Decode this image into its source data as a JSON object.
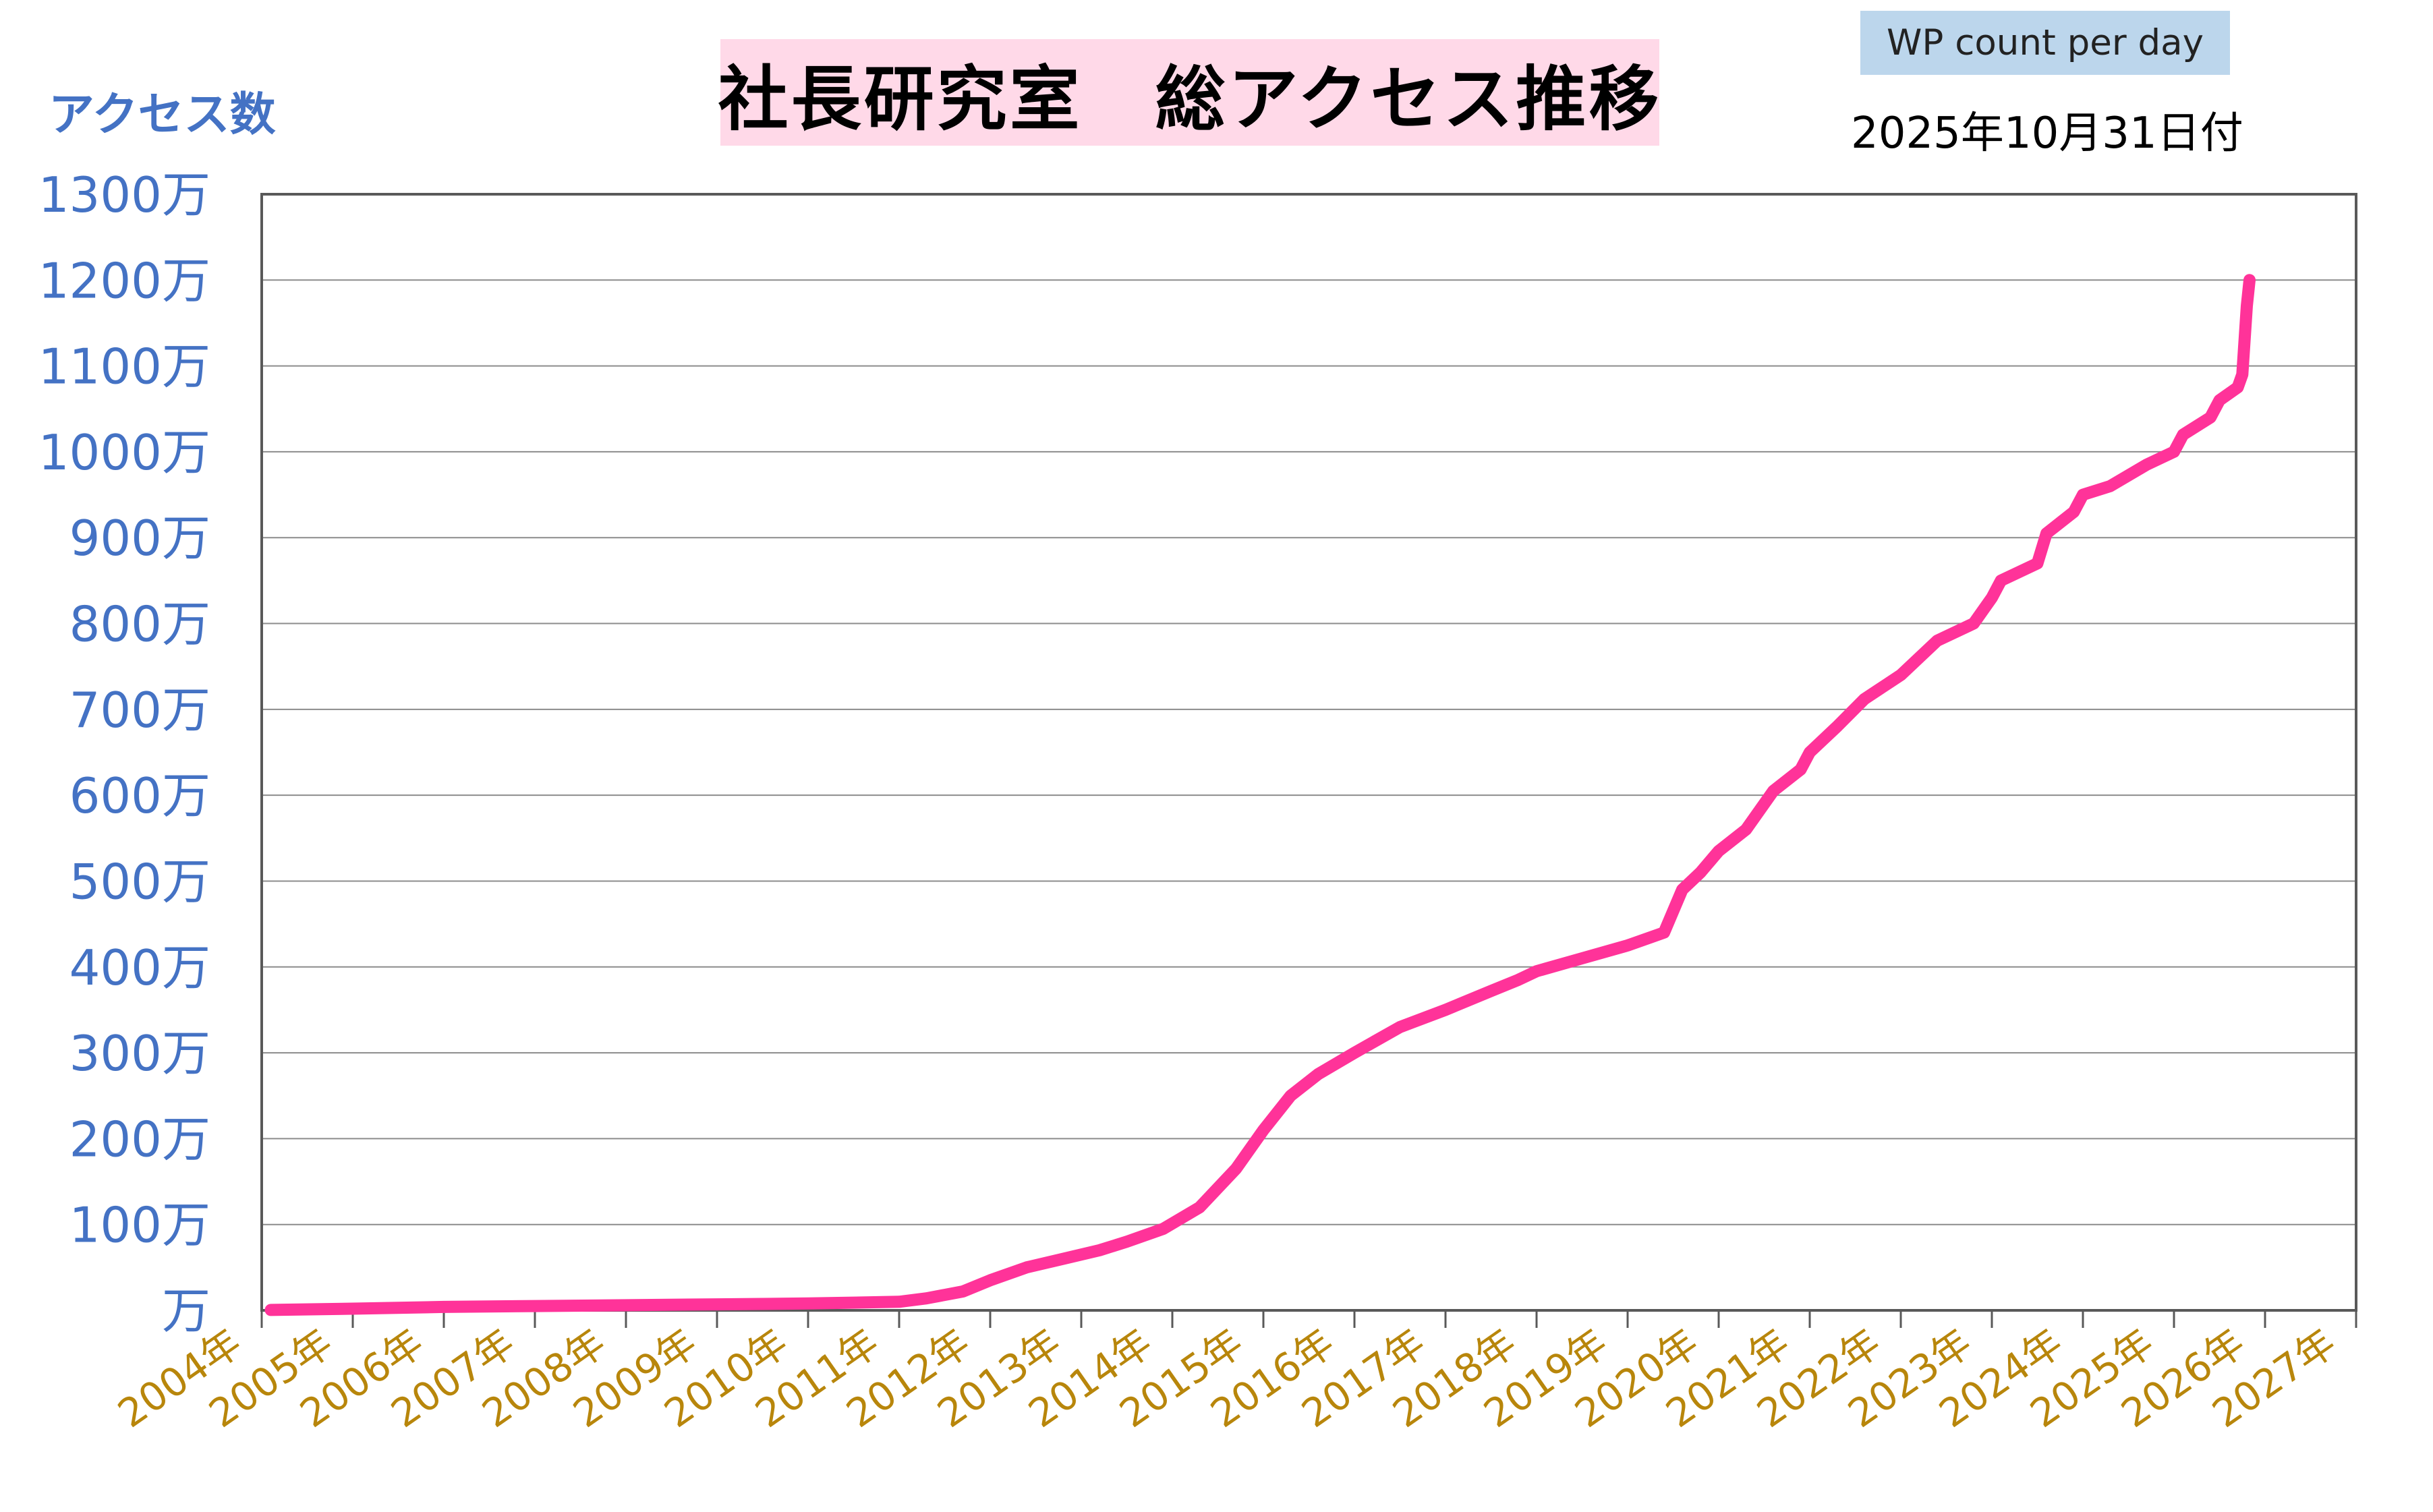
{
  "header": {
    "title": "社長研究室　総アクセス推移",
    "badge": "WP count per day",
    "date": "2025年10月31日付"
  },
  "colors": {
    "line": "#ff3399",
    "ytick": "#4472c4",
    "xtick": "#b8860b",
    "title_bg": "#ffd9e8",
    "badge_bg": "#bcd6ec"
  },
  "chart_data": {
    "type": "line",
    "ylabel": "アクセス数",
    "ylim": [
      0,
      1300
    ],
    "y_unit": "万",
    "y_ticks": [
      {
        "value": 0,
        "label": "万"
      },
      {
        "value": 100,
        "label": "100万"
      },
      {
        "value": 200,
        "label": "200万"
      },
      {
        "value": 300,
        "label": "300万"
      },
      {
        "value": 400,
        "label": "400万"
      },
      {
        "value": 500,
        "label": "500万"
      },
      {
        "value": 600,
        "label": "600万"
      },
      {
        "value": 700,
        "label": "700万"
      },
      {
        "value": 800,
        "label": "800万"
      },
      {
        "value": 900,
        "label": "900万"
      },
      {
        "value": 1000,
        "label": "1000万"
      },
      {
        "value": 1100,
        "label": "1100万"
      },
      {
        "value": 1200,
        "label": "1200万"
      },
      {
        "value": 1300,
        "label": "1300万"
      }
    ],
    "xlim": [
      2004,
      2027
    ],
    "x_ticks": [
      {
        "value": 2004,
        "label": "2004年"
      },
      {
        "value": 2005,
        "label": "2005年"
      },
      {
        "value": 2006,
        "label": "2006年"
      },
      {
        "value": 2007,
        "label": "2007年"
      },
      {
        "value": 2008,
        "label": "2008年"
      },
      {
        "value": 2009,
        "label": "2009年"
      },
      {
        "value": 2010,
        "label": "2010年"
      },
      {
        "value": 2011,
        "label": "2011年"
      },
      {
        "value": 2012,
        "label": "2012年"
      },
      {
        "value": 2013,
        "label": "2013年"
      },
      {
        "value": 2014,
        "label": "2014年"
      },
      {
        "value": 2015,
        "label": "2015年"
      },
      {
        "value": 2016,
        "label": "2016年"
      },
      {
        "value": 2017,
        "label": "2017年"
      },
      {
        "value": 2018,
        "label": "2018年"
      },
      {
        "value": 2019,
        "label": "2019年"
      },
      {
        "value": 2020,
        "label": "2020年"
      },
      {
        "value": 2021,
        "label": "2021年"
      },
      {
        "value": 2022,
        "label": "2022年"
      },
      {
        "value": 2023,
        "label": "2023年"
      },
      {
        "value": 2024,
        "label": "2024年"
      },
      {
        "value": 2025,
        "label": "2025年"
      },
      {
        "value": 2026,
        "label": "2026年"
      },
      {
        "value": 2027,
        "label": "2027年"
      }
    ],
    "grid": "horizontal",
    "series": [
      {
        "x": [
          2004.1,
          2005.0,
          2006.0,
          2007.0,
          2008.0,
          2009.0,
          2010.0,
          2011.0,
          2011.3,
          2011.7,
          2012.0,
          2012.4,
          2012.8,
          2013.2,
          2013.5,
          2013.9,
          2014.3,
          2014.7,
          2015.0,
          2015.3,
          2015.6,
          2016.0,
          2016.5,
          2017.0,
          2017.5,
          2017.8,
          2018.0,
          2018.5,
          2019.0,
          2019.4,
          2019.6,
          2019.8,
          2020.0,
          2020.3,
          2020.6,
          2020.9,
          2021.0,
          2021.3,
          2021.6,
          2022.0,
          2022.4,
          2022.8,
          2023.0,
          2023.1,
          2023.5,
          2023.6,
          2023.9,
          2024.0,
          2024.3,
          2024.7,
          2025.0,
          2025.1,
          2025.4,
          2025.5,
          2025.7,
          2025.75,
          2025.8,
          2025.83
        ],
        "values": [
          0.5,
          2,
          4,
          5,
          6,
          7,
          8,
          10,
          14,
          22,
          35,
          50,
          60,
          70,
          80,
          95,
          120,
          165,
          210,
          250,
          275,
          300,
          330,
          350,
          372,
          385,
          395,
          410,
          425,
          440,
          490,
          510,
          535,
          560,
          605,
          630,
          650,
          680,
          712,
          740,
          780,
          800,
          830,
          850,
          870,
          905,
          930,
          950,
          960,
          985,
          1000,
          1020,
          1040,
          1060,
          1075,
          1090,
          1170,
          1200
        ]
      }
    ]
  }
}
